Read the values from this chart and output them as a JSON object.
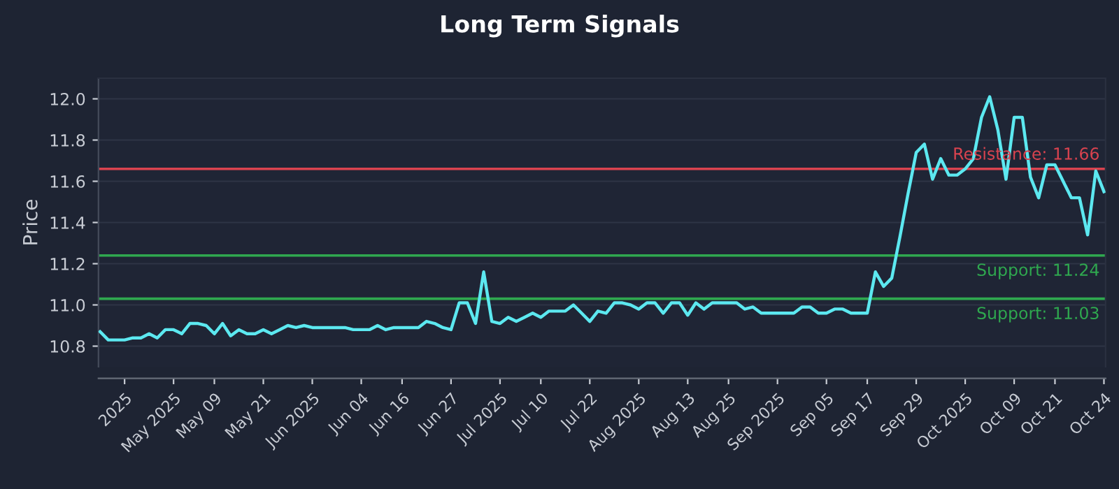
{
  "chart_data": {
    "type": "line",
    "title": "Long Term Signals",
    "ylabel": "Price",
    "categories": [
      null,
      null,
      null,
      "2025",
      null,
      null,
      null,
      null,
      null,
      "May 2025",
      null,
      null,
      null,
      null,
      "May 09",
      null,
      null,
      null,
      null,
      null,
      "May 21",
      null,
      null,
      null,
      null,
      null,
      "Jun 2025",
      null,
      null,
      null,
      null,
      null,
      "Jun 04",
      null,
      null,
      null,
      null,
      "Jun 16",
      null,
      null,
      null,
      null,
      null,
      "Jun 27",
      null,
      null,
      null,
      null,
      null,
      "Jul 2025",
      null,
      null,
      null,
      null,
      "Jul 10",
      null,
      null,
      null,
      null,
      null,
      "Jul 22",
      null,
      null,
      null,
      null,
      null,
      "Aug 2025",
      null,
      null,
      null,
      null,
      null,
      "Aug 13",
      null,
      null,
      null,
      null,
      "Aug 25",
      null,
      null,
      null,
      null,
      null,
      "Sep 2025",
      null,
      null,
      null,
      null,
      null,
      "Sep 05",
      null,
      null,
      null,
      null,
      "Sep 17",
      null,
      null,
      null,
      null,
      null,
      "Sep 29",
      null,
      null,
      null,
      null,
      null,
      "Oct 2025",
      null,
      null,
      null,
      null,
      null,
      "Oct 09",
      null,
      null,
      null,
      null,
      "Oct 21",
      null,
      null,
      null,
      null,
      null,
      "Oct 24"
    ],
    "series": [
      {
        "color": "#5ce8f0",
        "values": [
          10.87,
          10.83,
          10.83,
          10.83,
          10.84,
          10.84,
          10.86,
          10.84,
          10.88,
          10.88,
          10.86,
          10.91,
          10.91,
          10.9,
          10.86,
          10.91,
          10.85,
          10.88,
          10.86,
          10.86,
          10.88,
          10.86,
          10.88,
          10.9,
          10.89,
          10.9,
          10.89,
          10.89,
          10.89,
          10.89,
          10.89,
          10.88,
          10.88,
          10.88,
          10.9,
          10.88,
          10.89,
          10.89,
          10.89,
          10.89,
          10.92,
          10.91,
          10.89,
          10.88,
          11.01,
          11.01,
          10.91,
          11.16,
          10.92,
          10.91,
          10.94,
          10.92,
          10.94,
          10.96,
          10.94,
          10.97,
          10.97,
          10.97,
          11.0,
          10.96,
          10.92,
          10.97,
          10.96,
          11.01,
          11.01,
          11.0,
          10.98,
          11.01,
          11.01,
          10.96,
          11.01,
          11.01,
          10.95,
          11.01,
          10.98,
          11.01,
          11.01,
          11.01,
          11.01,
          10.98,
          10.99,
          10.96,
          10.96,
          10.96,
          10.96,
          10.96,
          10.99,
          10.99,
          10.96,
          10.96,
          10.98,
          10.98,
          10.96,
          10.96,
          10.96,
          11.16,
          11.09,
          11.13,
          11.33,
          11.54,
          11.74,
          11.78,
          11.61,
          11.71,
          11.63,
          11.63,
          11.66,
          11.71,
          11.91,
          12.01,
          11.85,
          11.61,
          11.91,
          11.91,
          11.62,
          11.52,
          11.68,
          11.68,
          11.6,
          11.52,
          11.52,
          11.34,
          11.65,
          11.55
        ]
      }
    ],
    "ylim": [
      10.7,
      12.1
    ],
    "yticks": [
      {
        "value": 10.8,
        "label": "10.8"
      },
      {
        "value": 11.0,
        "label": "11.0"
      },
      {
        "value": 11.2,
        "label": "11.2"
      },
      {
        "value": 11.4,
        "label": "11.4"
      },
      {
        "value": 11.6,
        "label": "11.6"
      },
      {
        "value": 11.8,
        "label": "11.8"
      },
      {
        "value": 12.0,
        "label": "12.0"
      }
    ],
    "ref_lines": [
      {
        "axis": "y",
        "value": 11.66,
        "label": "Resistance: 11.66",
        "color": "#d9434f"
      },
      {
        "axis": "y",
        "value": 11.24,
        "label": "Support: 11.24",
        "color": "#2fa84f"
      },
      {
        "axis": "y",
        "value": 11.03,
        "label": "Support: 11.03",
        "color": "#2fa84f"
      }
    ],
    "grid": "y",
    "line_style": "solid",
    "marker": "none"
  }
}
